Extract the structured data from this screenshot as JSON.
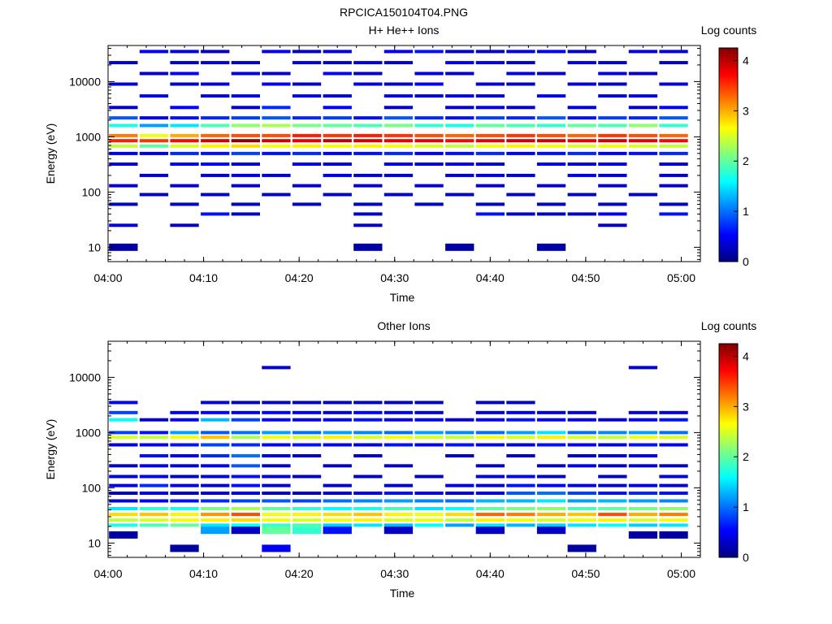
{
  "figure": {
    "title": "RPCICA150104T04.PNG"
  },
  "colormap": [
    "#00007f",
    "#0000ff",
    "#007fff",
    "#00ffff",
    "#7fff7f",
    "#ffff00",
    "#ff7f00",
    "#ff0000",
    "#7f0000"
  ],
  "chart_data": [
    {
      "type": "heatmap",
      "title": "H+ He++ Ions",
      "xlabel": "Time",
      "ylabel": "Energy (eV)",
      "xlim": [
        "04:00",
        "05:02"
      ],
      "ylim": [
        5.5,
        45000
      ],
      "yscale": "log",
      "xticks": [
        "04:00",
        "04:10",
        "04:20",
        "04:30",
        "04:40",
        "04:50",
        "05:00"
      ],
      "yticks": [
        "10",
        "100",
        "1000",
        "10000"
      ],
      "colorbar": {
        "label": "Log counts",
        "range": [
          0,
          4.25
        ],
        "ticks": [
          "0",
          "1",
          "2",
          "3",
          "4"
        ]
      },
      "time_bins": [
        "04:01.6",
        "04:04.8",
        "04:08.0",
        "04:11.2",
        "04:14.4",
        "04:17.6",
        "04:20.8",
        "04:24.0",
        "04:27.2",
        "04:30.4",
        "04:33.6",
        "04:36.8",
        "04:40.0",
        "04:43.2",
        "04:46.4",
        "04:49.6",
        "04:52.8",
        "04:56.0",
        "04:59.2"
      ],
      "energy_bands": [
        {
          "e": 35000,
          "v": [
            0.0,
            0.5,
            0.4,
            0.3,
            0.0,
            0.5,
            0.3,
            0.4,
            0.0,
            0.5,
            0.6,
            0.3,
            0.3,
            0.4,
            0.5,
            0.3,
            0.0,
            0.4,
            0.4
          ]
        },
        {
          "e": 22000,
          "v": [
            0.3,
            0.0,
            0.3,
            0.4,
            0.3,
            0.0,
            0.4,
            0.3,
            0.4,
            0.3,
            0.0,
            0.5,
            0.4,
            0.3,
            0.0,
            0.4,
            0.3,
            0.0,
            0.3
          ]
        },
        {
          "e": 14000,
          "v": [
            0.0,
            0.3,
            0.5,
            0.0,
            0.4,
            0.3,
            0.0,
            0.5,
            0.3,
            0.0,
            0.4,
            0.3,
            0.0,
            0.4,
            0.3,
            0.0,
            0.4,
            0.3,
            0.0
          ]
        },
        {
          "e": 9000,
          "v": [
            0.4,
            0.0,
            0.3,
            0.4,
            0.0,
            0.5,
            0.3,
            0.0,
            0.4,
            0.3,
            0.5,
            0.0,
            0.4,
            0.3,
            0.0,
            0.4,
            0.3,
            0.0,
            0.4
          ]
        },
        {
          "e": 5500,
          "v": [
            0.0,
            0.4,
            0.0,
            0.3,
            0.4,
            0.0,
            0.4,
            0.3,
            0.0,
            0.4,
            0.3,
            0.4,
            0.3,
            0.0,
            0.4,
            0.0,
            0.3,
            0.4,
            0.0
          ]
        },
        {
          "e": 3400,
          "v": [
            0.3,
            0.0,
            0.5,
            0.0,
            0.3,
            0.7,
            0.0,
            0.5,
            0.0,
            0.3,
            0.0,
            0.3,
            0.4,
            0.3,
            0.0,
            0.4,
            0.0,
            0.3,
            0.5
          ]
        },
        {
          "e": 2200,
          "v": [
            0.9,
            0.5,
            0.6,
            0.7,
            0.8,
            0.9,
            0.7,
            0.8,
            0.6,
            0.9,
            0.7,
            0.6,
            0.8,
            0.7,
            0.9,
            0.6,
            0.8,
            0.7,
            0.9
          ]
        },
        {
          "e": 1600,
          "v": [
            1.7,
            1.2,
            1.5,
            1.9,
            2.2,
            2.3,
            2.1,
            2.0,
            1.9,
            2.1,
            1.8,
            1.7,
            2.0,
            1.9,
            1.8,
            2.0,
            1.9,
            2.2,
            1.8
          ]
        },
        {
          "e": 1050,
          "v": [
            3.2,
            2.6,
            3.0,
            3.3,
            3.4,
            3.4,
            3.6,
            3.5,
            3.6,
            3.5,
            3.4,
            3.3,
            3.4,
            3.5,
            3.4,
            3.3,
            3.5,
            3.4,
            3.3
          ]
        },
        {
          "e": 850,
          "v": [
            3.6,
            3.5,
            3.7,
            3.9,
            4.2,
            3.9,
            3.8,
            4.0,
            3.9,
            3.8,
            3.8,
            3.7,
            3.8,
            3.9,
            3.9,
            3.8,
            3.9,
            3.8,
            3.7
          ]
        },
        {
          "e": 680,
          "v": [
            2.4,
            2.0,
            2.5,
            2.7,
            2.8,
            2.6,
            2.7,
            2.6,
            2.7,
            2.6,
            2.5,
            2.4,
            2.6,
            2.7,
            2.6,
            2.5,
            2.6,
            2.5,
            2.4
          ]
        },
        {
          "e": 500,
          "v": [
            0.5,
            0.4,
            0.7,
            0.6,
            0.8,
            0.6,
            0.7,
            0.5,
            0.6,
            0.7,
            0.5,
            0.6,
            0.7,
            0.5,
            0.6,
            0.7,
            0.5,
            0.6,
            0.7
          ]
        },
        {
          "e": 320,
          "v": [
            0.3,
            0.0,
            0.4,
            0.5,
            0.3,
            0.0,
            0.4,
            0.3,
            0.0,
            0.4,
            0.3,
            0.4,
            0.3,
            0.0,
            0.4,
            0.3,
            0.4,
            0.0,
            0.3
          ]
        },
        {
          "e": 200,
          "v": [
            0.0,
            0.3,
            0.0,
            0.3,
            0.4,
            0.3,
            0.0,
            0.4,
            0.3,
            0.3,
            0.0,
            0.3,
            0.4,
            0.3,
            0.0,
            0.4,
            0.3,
            0.0,
            0.3
          ]
        },
        {
          "e": 130,
          "v": [
            0.3,
            0.0,
            0.3,
            0.0,
            0.3,
            0.0,
            0.3,
            0.0,
            0.3,
            0.0,
            0.3,
            0.0,
            0.3,
            0.0,
            0.3,
            0.0,
            0.3,
            0.0,
            0.3
          ]
        },
        {
          "e": 90,
          "v": [
            0.0,
            0.3,
            0.0,
            0.3,
            0.0,
            0.3,
            0.0,
            0.3,
            0.0,
            0.3,
            0.0,
            0.3,
            0.0,
            0.3,
            0.0,
            0.3,
            0.0,
            0.3,
            0.0
          ]
        },
        {
          "e": 60,
          "v": [
            0.3,
            0.0,
            0.3,
            0.0,
            0.3,
            0.0,
            0.3,
            0.0,
            0.3,
            0.0,
            0.3,
            0.0,
            0.3,
            0.0,
            0.3,
            0.0,
            0.3,
            0.0,
            0.3
          ]
        },
        {
          "e": 40,
          "v": [
            0.0,
            0.0,
            0.0,
            0.6,
            0.3,
            0.0,
            0.0,
            0.0,
            0.3,
            0.0,
            0.0,
            0.0,
            0.6,
            0.3,
            0.3,
            0.3,
            0.5,
            0.0,
            0.6
          ]
        },
        {
          "e": 25,
          "v": [
            0.4,
            0.0,
            0.3,
            0.0,
            0.0,
            0.0,
            0.0,
            0.0,
            0.3,
            0.0,
            0.0,
            0.0,
            0.0,
            0.0,
            0.0,
            0.0,
            0.3,
            0.0,
            0.0
          ]
        },
        {
          "e": 10,
          "v": [
            0.15,
            0.0,
            0.0,
            0.0,
            0.0,
            0.0,
            0.0,
            0.0,
            0.15,
            0.0,
            0.0,
            0.15,
            0.0,
            0.0,
            0.15,
            0.0,
            0.0,
            0.0,
            0.0
          ]
        }
      ]
    },
    {
      "type": "heatmap",
      "title": "Other Ions",
      "xlabel": "Time",
      "ylabel": "Energy (eV)",
      "xlim": [
        "04:00",
        "05:02"
      ],
      "ylim": [
        5.5,
        45000
      ],
      "yscale": "log",
      "xticks": [
        "04:00",
        "04:10",
        "04:20",
        "04:30",
        "04:40",
        "04:50",
        "05:00"
      ],
      "yticks": [
        "10",
        "100",
        "1000",
        "10000"
      ],
      "colorbar": {
        "label": "Log counts",
        "range": [
          0,
          4.25
        ],
        "ticks": [
          "0",
          "1",
          "2",
          "3",
          "4"
        ]
      },
      "time_bins": [
        "04:01.6",
        "04:04.8",
        "04:08.0",
        "04:11.2",
        "04:14.4",
        "04:17.6",
        "04:20.8",
        "04:24.0",
        "04:27.2",
        "04:30.4",
        "04:33.6",
        "04:36.8",
        "04:40.0",
        "04:43.2",
        "04:46.4",
        "04:49.6",
        "04:52.8",
        "04:56.0",
        "04:59.2"
      ],
      "energy_bands": [
        {
          "e": 15000,
          "v": [
            0.0,
            0.0,
            0.0,
            0.0,
            0.0,
            0.3,
            0.0,
            0.0,
            0.0,
            0.0,
            0.0,
            0.0,
            0.0,
            0.0,
            0.0,
            0.0,
            0.0,
            0.3,
            0.0
          ]
        },
        {
          "e": 3500,
          "v": [
            0.5,
            0.0,
            0.0,
            0.4,
            0.3,
            0.3,
            0.3,
            0.3,
            0.3,
            0.3,
            0.3,
            0.0,
            0.3,
            0.3,
            0.0,
            0.0,
            0.0,
            0.0,
            0.0
          ]
        },
        {
          "e": 2300,
          "v": [
            0.8,
            0.0,
            0.4,
            0.5,
            0.4,
            0.5,
            0.4,
            0.3,
            0.5,
            0.4,
            0.3,
            0.0,
            0.3,
            0.4,
            0.3,
            0.3,
            0.0,
            0.3,
            0.3
          ]
        },
        {
          "e": 1700,
          "v": [
            1.6,
            0.3,
            0.5,
            1.3,
            0.8,
            0.5,
            0.4,
            0.5,
            0.6,
            0.4,
            0.5,
            0.3,
            0.5,
            0.6,
            0.5,
            0.4,
            0.3,
            0.5,
            0.6
          ]
        },
        {
          "e": 1000,
          "v": [
            0.8,
            0.6,
            1.2,
            0.9,
            1.0,
            1.2,
            1.0,
            1.2,
            1.1,
            1.0,
            1.2,
            1.1,
            1.0,
            1.2,
            1.5,
            1.0,
            1.1,
            1.2,
            1.0
          ]
        },
        {
          "e": 820,
          "v": [
            2.5,
            2.4,
            2.6,
            2.9,
            2.3,
            2.6,
            2.5,
            2.7,
            2.5,
            2.6,
            2.5,
            2.4,
            2.6,
            2.5,
            2.7,
            2.5,
            2.4,
            2.6,
            2.5
          ]
        },
        {
          "e": 600,
          "v": [
            0.4,
            0.5,
            0.6,
            0.8,
            0.7,
            0.5,
            0.6,
            0.5,
            0.4,
            0.6,
            0.5,
            0.6,
            0.5,
            0.4,
            0.6,
            0.5,
            0.4,
            0.6,
            0.5
          ]
        },
        {
          "e": 380,
          "v": [
            0.0,
            0.6,
            0.5,
            0.7,
            1.0,
            0.4,
            0.3,
            0.0,
            0.3,
            0.0,
            0.0,
            0.3,
            0.0,
            0.3,
            0.0,
            0.3,
            0.4,
            0.5,
            0.0
          ]
        },
        {
          "e": 250,
          "v": [
            0.3,
            0.5,
            0.4,
            0.5,
            0.9,
            0.3,
            0.0,
            0.3,
            0.0,
            0.3,
            0.0,
            0.0,
            0.3,
            0.0,
            0.3,
            0.5,
            0.3,
            0.4,
            0.3
          ]
        },
        {
          "e": 160,
          "v": [
            0.4,
            0.5,
            0.3,
            0.4,
            0.6,
            0.4,
            0.3,
            0.0,
            0.3,
            0.0,
            0.3,
            0.0,
            0.4,
            0.5,
            0.3,
            0.0,
            0.3,
            0.0,
            0.4
          ]
        },
        {
          "e": 110,
          "v": [
            0.4,
            0.7,
            0.4,
            0.3,
            0.6,
            0.3,
            0.0,
            0.3,
            0.0,
            0.3,
            0.0,
            0.4,
            0.3,
            0.6,
            0.5,
            0.4,
            0.3,
            0.4,
            0.3
          ]
        },
        {
          "e": 80,
          "v": [
            0.3,
            0.5,
            0.3,
            0.4,
            0.5,
            0.3,
            0.3,
            0.4,
            0.5,
            0.6,
            0.5,
            0.4,
            0.5,
            0.9,
            1.0,
            0.8,
            0.6,
            0.7,
            0.6
          ]
        },
        {
          "e": 58,
          "v": [
            0.4,
            0.5,
            0.6,
            0.7,
            0.8,
            0.9,
            0.8,
            1.0,
            1.1,
            1.2,
            1.1,
            1.0,
            1.3,
            1.3,
            1.5,
            1.2,
            1.3,
            1.2,
            1.1
          ]
        },
        {
          "e": 42,
          "v": [
            1.5,
            1.8,
            1.7,
            2.1,
            2.3,
            2.0,
            1.8,
            1.6,
            1.7,
            1.9,
            1.5,
            1.6,
            2.0,
            2.1,
            2.2,
            1.9,
            2.0,
            2.1,
            2.2
          ]
        },
        {
          "e": 33,
          "v": [
            2.8,
            2.9,
            2.7,
            3.1,
            3.4,
            2.6,
            2.7,
            2.8,
            2.9,
            2.7,
            2.6,
            2.8,
            3.3,
            3.2,
            3.0,
            2.9,
            3.4,
            3.0,
            3.2
          ]
        },
        {
          "e": 26,
          "v": [
            2.4,
            2.5,
            2.6,
            2.7,
            2.8,
            2.6,
            2.5,
            2.6,
            2.7,
            2.5,
            2.6,
            2.4,
            2.7,
            2.6,
            2.5,
            2.6,
            2.7,
            2.5,
            2.6
          ]
        },
        {
          "e": 21,
          "v": [
            1.7,
            1.9,
            2.0,
            1.5,
            1.6,
            1.8,
            1.9,
            1.4,
            1.5,
            1.3,
            1.6,
            1.2,
            1.5,
            1.3,
            1.4,
            1.5,
            1.6,
            1.4,
            1.5
          ]
        },
        {
          "e": 17,
          "v": [
            0.0,
            0.0,
            0.0,
            1.2,
            0.3,
            2.0,
            1.8,
            0.6,
            0.0,
            0.3,
            0.0,
            0.0,
            0.3,
            0.0,
            0.3,
            0.0,
            0.0,
            0.0,
            0.0
          ]
        },
        {
          "e": 14,
          "v": [
            0.15,
            0.0,
            0.0,
            0.0,
            0.0,
            0.0,
            0.0,
            0.0,
            0.0,
            0.0,
            0.0,
            0.0,
            0.0,
            0.0,
            0.0,
            0.0,
            0.0,
            0.15,
            0.15
          ]
        },
        {
          "e": 8,
          "v": [
            0.0,
            0.0,
            0.15,
            0.0,
            0.0,
            0.5,
            0.0,
            0.0,
            0.0,
            0.0,
            0.0,
            0.0,
            0.0,
            0.0,
            0.0,
            0.15,
            0.0,
            0.0,
            0.0
          ]
        }
      ]
    }
  ]
}
